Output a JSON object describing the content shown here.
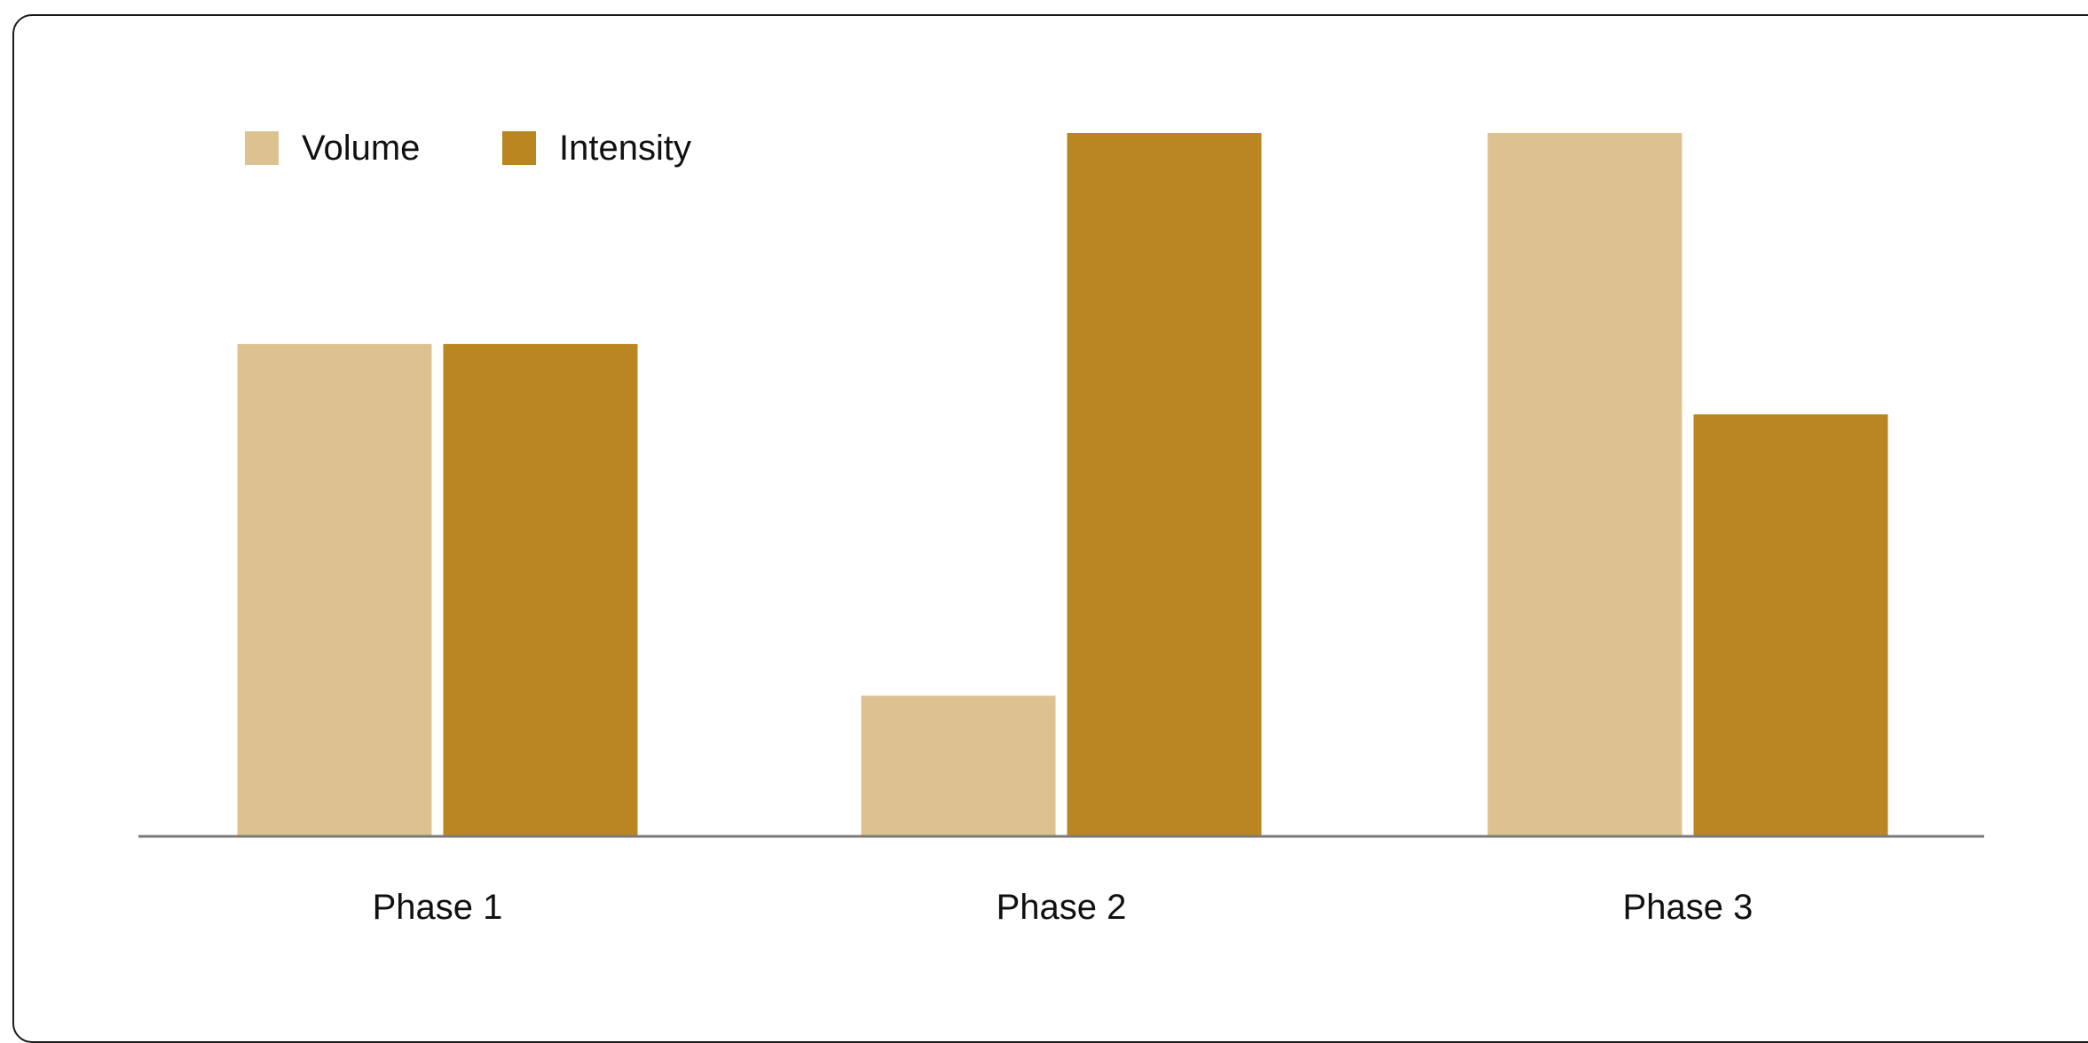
{
  "chart_data": {
    "type": "bar",
    "title": "",
    "xlabel": "",
    "ylabel": "",
    "categories": [
      "Phase 1",
      "Phase 2",
      "Phase 3"
    ],
    "series": [
      {
        "name": "Volume",
        "values": [
          7,
          2,
          10
        ],
        "color": "#dcc290"
      },
      {
        "name": "Intensity",
        "values": [
          7,
          10,
          6
        ],
        "color": "#b98622"
      }
    ],
    "ylim": [
      0,
      10
    ],
    "grid": false,
    "legend": "top-left"
  },
  "colors": {
    "axis": "#7a7a7a",
    "text": "#111111",
    "border": "#1a1a1a"
  }
}
